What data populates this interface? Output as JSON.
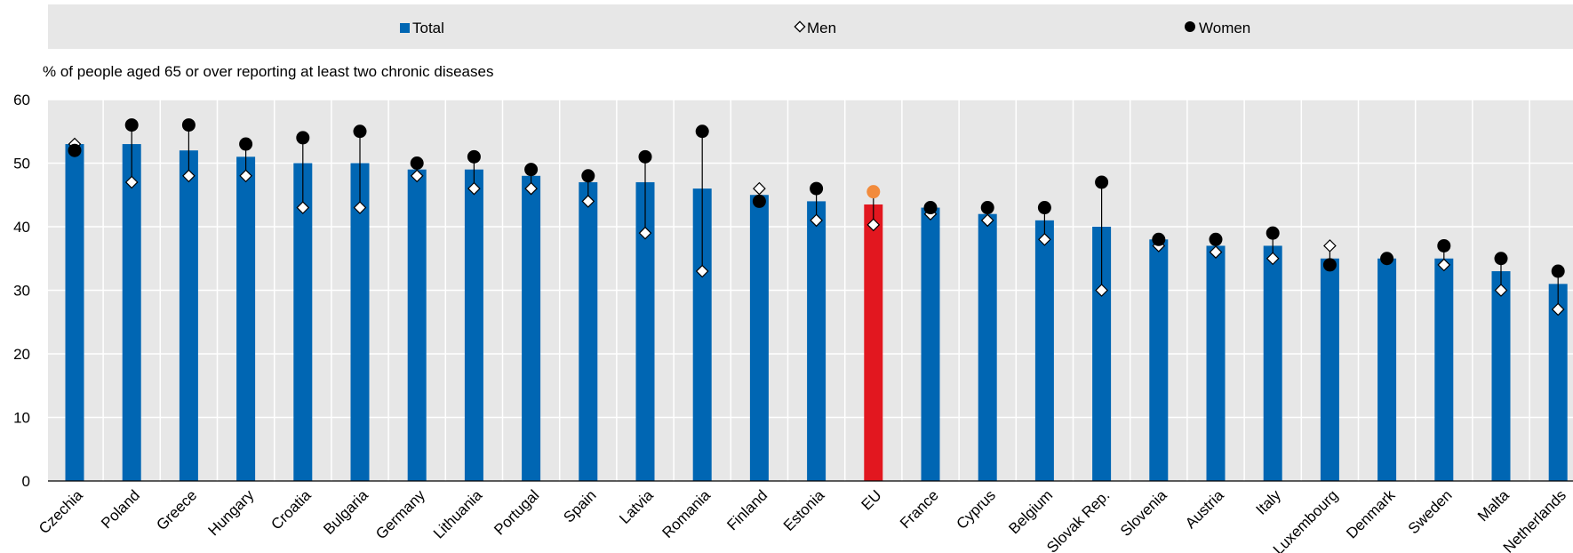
{
  "chart_data": {
    "type": "bar",
    "subtitle": "% of people aged 65 or over reporting at least two chronic diseases",
    "ylim": [
      0,
      60
    ],
    "yticks": [
      0,
      10,
      20,
      30,
      40,
      50,
      60
    ],
    "legend": {
      "placement": "top",
      "items": [
        "Total",
        "Men",
        "Women"
      ]
    },
    "colors": {
      "total": "#0066B3",
      "highlight": "#E2171F",
      "eu_women": "#F28B3C",
      "panel": "#E7E7E7",
      "men_marker": "#FFFFFF",
      "women_marker": "#000000"
    },
    "highlight_category": "EU",
    "categories": [
      "Czechia",
      "Poland",
      "Greece",
      "Hungary",
      "Croatia",
      "Bulgaria",
      "Germany",
      "Lithuania",
      "Portugal",
      "Spain",
      "Latvia",
      "Romania",
      "Finland",
      "Estonia",
      "EU",
      "France",
      "Cyprus",
      "Belgium",
      "Slovak Rep.",
      "Slovenia",
      "Austria",
      "Italy",
      "Luxembourg",
      "Denmark",
      "Sweden",
      "Malta",
      "Netherlands"
    ],
    "series": [
      {
        "name": "Total",
        "values": [
          53,
          53,
          52,
          51,
          50,
          50,
          49,
          49,
          48,
          47,
          47,
          46,
          45,
          44,
          43.5,
          43,
          42,
          41,
          40,
          38,
          37,
          37,
          35,
          35,
          35,
          33,
          31
        ]
      },
      {
        "name": "Men",
        "values": [
          53,
          47,
          48,
          48,
          43,
          43,
          48,
          46,
          46,
          44,
          39,
          33,
          46,
          41,
          40.3,
          42,
          41,
          38,
          30,
          37,
          36,
          35,
          37,
          35,
          34,
          30,
          27
        ]
      },
      {
        "name": "Women",
        "values": [
          52,
          56,
          56,
          53,
          54,
          55,
          50,
          51,
          49,
          48,
          51,
          55,
          44,
          46,
          45.5,
          43,
          43,
          43,
          47,
          38,
          38,
          39,
          34,
          35,
          37,
          35,
          33
        ]
      }
    ]
  }
}
